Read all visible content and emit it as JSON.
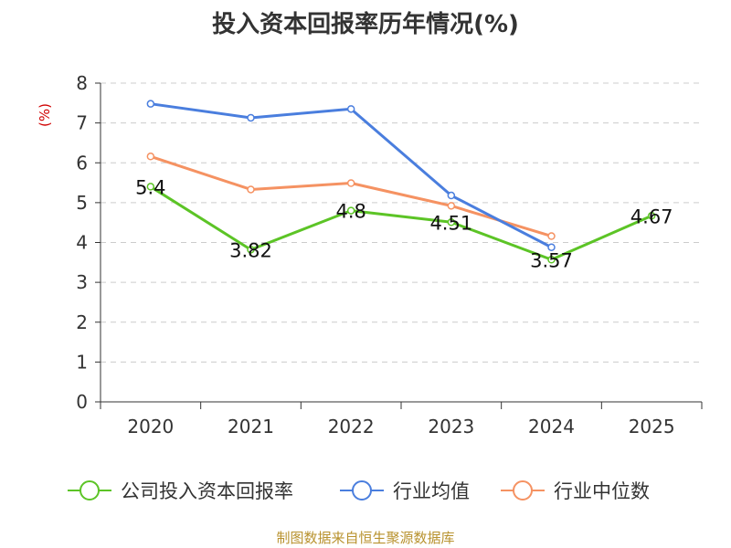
{
  "chart_data": {
    "type": "line",
    "title": "投入资本回报率历年情况(%)",
    "ylabel": "(%)",
    "xlabel": "",
    "categories": [
      "2020",
      "2021",
      "2022",
      "2023",
      "2024",
      "2025"
    ],
    "ylim": [
      0,
      8
    ],
    "yticks": [
      0,
      1,
      2,
      3,
      4,
      5,
      6,
      7,
      8
    ],
    "grid": true,
    "legend_position": "bottom",
    "series": [
      {
        "name": "公司投入资本回报率",
        "color": "#5cc426",
        "values": [
          5.4,
          3.82,
          4.8,
          4.51,
          3.57,
          4.67
        ],
        "labels": [
          "5.4",
          "3.82",
          "4.8",
          "4.51",
          "3.57",
          "4.67"
        ]
      },
      {
        "name": "行业均值",
        "color": "#4a7ede",
        "values": [
          7.48,
          7.13,
          7.35,
          5.18,
          3.88,
          null
        ]
      },
      {
        "name": "行业中位数",
        "color": "#f59262",
        "values": [
          6.16,
          5.33,
          5.49,
          4.92,
          4.16,
          null
        ]
      }
    ]
  },
  "source": "制图数据来自恒生聚源数据库"
}
